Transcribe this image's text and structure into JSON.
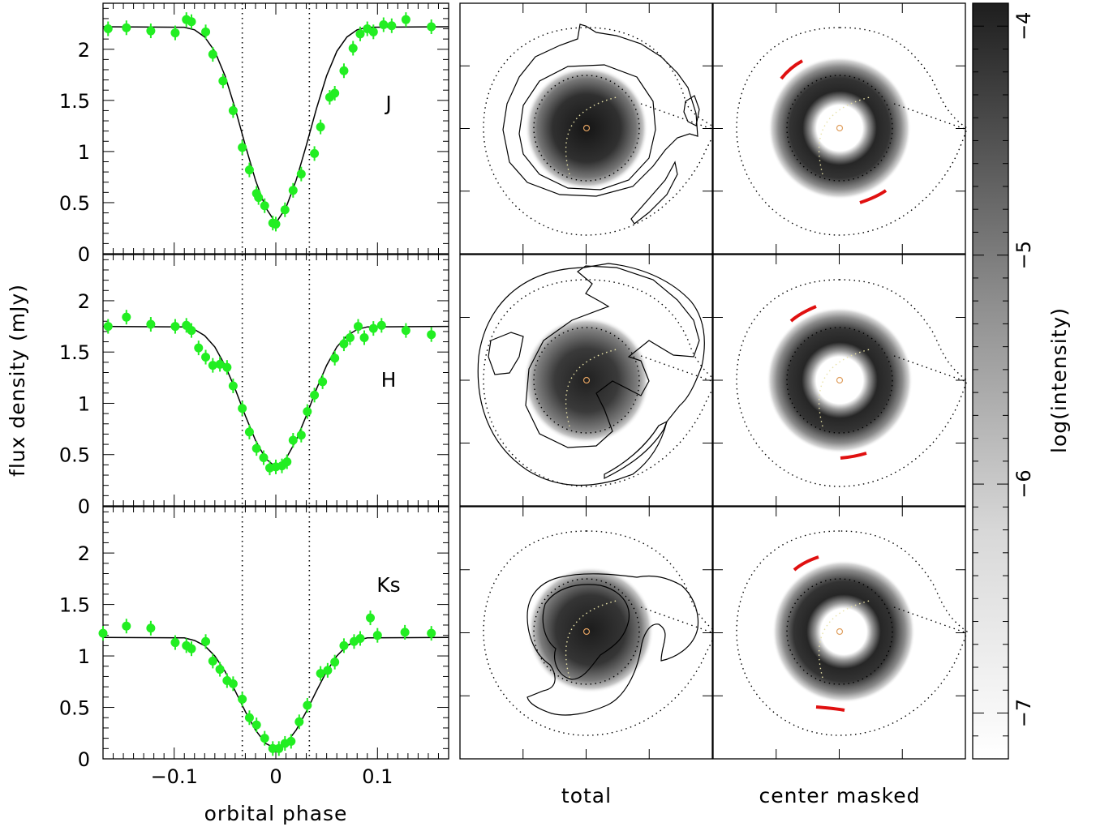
{
  "chart_data": [
    {
      "type": "scatter",
      "band": "J",
      "ylabel": "flux density (mJy)",
      "xlim": [
        -0.17,
        0.17
      ],
      "ylim": [
        0,
        2.45
      ],
      "xticks": [
        "−0.1",
        "0",
        "0.1"
      ],
      "yticks": [
        "0",
        "0.5",
        "1",
        "1.5",
        "2"
      ],
      "vlines_x": [
        -0.033,
        0.033
      ],
      "data_color": "#22ee22",
      "points": [
        [
          -0.165,
          2.2
        ],
        [
          -0.147,
          2.21
        ],
        [
          -0.123,
          2.18
        ],
        [
          -0.099,
          2.16
        ],
        [
          -0.088,
          2.29
        ],
        [
          -0.083,
          2.27
        ],
        [
          -0.069,
          2.17
        ],
        [
          -0.062,
          1.95
        ],
        [
          -0.052,
          1.69
        ],
        [
          -0.042,
          1.4
        ],
        [
          -0.033,
          1.04
        ],
        [
          -0.026,
          0.82
        ],
        [
          -0.019,
          0.59
        ],
        [
          -0.017,
          0.55
        ],
        [
          -0.011,
          0.47
        ],
        [
          -0.003,
          0.3
        ],
        [
          0.0,
          0.29
        ],
        [
          0.009,
          0.43
        ],
        [
          0.017,
          0.62
        ],
        [
          0.025,
          0.78
        ],
        [
          0.038,
          0.98
        ],
        [
          0.044,
          1.24
        ],
        [
          0.053,
          1.53
        ],
        [
          0.058,
          1.57
        ],
        [
          0.067,
          1.79
        ],
        [
          0.076,
          2.01
        ],
        [
          0.083,
          2.15
        ],
        [
          0.09,
          2.2
        ],
        [
          0.096,
          2.17
        ],
        [
          0.106,
          2.24
        ],
        [
          0.114,
          2.23
        ],
        [
          0.128,
          2.29
        ],
        [
          0.153,
          2.22
        ]
      ],
      "model": [
        [
          -0.17,
          2.22
        ],
        [
          -0.09,
          2.215
        ],
        [
          -0.08,
          2.19
        ],
        [
          -0.07,
          2.12
        ],
        [
          -0.06,
          1.98
        ],
        [
          -0.05,
          1.74
        ],
        [
          -0.04,
          1.42
        ],
        [
          -0.03,
          1.06
        ],
        [
          -0.02,
          0.72
        ],
        [
          -0.01,
          0.45
        ],
        [
          0.0,
          0.3
        ],
        [
          0.01,
          0.45
        ],
        [
          0.02,
          0.72
        ],
        [
          0.03,
          1.06
        ],
        [
          0.04,
          1.42
        ],
        [
          0.05,
          1.74
        ],
        [
          0.06,
          1.98
        ],
        [
          0.07,
          2.12
        ],
        [
          0.08,
          2.19
        ],
        [
          0.09,
          2.215
        ],
        [
          0.17,
          2.22
        ]
      ]
    },
    {
      "type": "scatter",
      "band": "H",
      "xlim": [
        -0.17,
        0.17
      ],
      "ylim": [
        0,
        2.45
      ],
      "yticks": [
        "0",
        "0.5",
        "1",
        "1.5",
        "2"
      ],
      "vlines_x": [
        -0.033,
        0.033
      ],
      "data_color": "#22ee22",
      "points": [
        [
          -0.165,
          1.75
        ],
        [
          -0.147,
          1.84
        ],
        [
          -0.123,
          1.77
        ],
        [
          -0.099,
          1.75
        ],
        [
          -0.088,
          1.76
        ],
        [
          -0.083,
          1.71
        ],
        [
          -0.076,
          1.54
        ],
        [
          -0.069,
          1.45
        ],
        [
          -0.062,
          1.37
        ],
        [
          -0.055,
          1.38
        ],
        [
          -0.048,
          1.35
        ],
        [
          -0.042,
          1.17
        ],
        [
          -0.033,
          0.95
        ],
        [
          -0.026,
          0.72
        ],
        [
          -0.019,
          0.56
        ],
        [
          -0.012,
          0.47
        ],
        [
          -0.006,
          0.37
        ],
        [
          0.0,
          0.38
        ],
        [
          0.006,
          0.39
        ],
        [
          0.011,
          0.43
        ],
        [
          0.017,
          0.64
        ],
        [
          0.025,
          0.69
        ],
        [
          0.031,
          0.92
        ],
        [
          0.038,
          1.08
        ],
        [
          0.046,
          1.21
        ],
        [
          0.058,
          1.44
        ],
        [
          0.067,
          1.58
        ],
        [
          0.073,
          1.64
        ],
        [
          0.081,
          1.75
        ],
        [
          0.087,
          1.64
        ],
        [
          0.096,
          1.73
        ],
        [
          0.104,
          1.76
        ],
        [
          0.128,
          1.71
        ],
        [
          0.153,
          1.67
        ]
      ],
      "model": [
        [
          -0.17,
          1.75
        ],
        [
          -0.09,
          1.745
        ],
        [
          -0.08,
          1.72
        ],
        [
          -0.07,
          1.66
        ],
        [
          -0.06,
          1.55
        ],
        [
          -0.05,
          1.37
        ],
        [
          -0.04,
          1.14
        ],
        [
          -0.03,
          0.88
        ],
        [
          -0.02,
          0.64
        ],
        [
          -0.01,
          0.46
        ],
        [
          0.0,
          0.38
        ],
        [
          0.01,
          0.46
        ],
        [
          0.02,
          0.64
        ],
        [
          0.03,
          0.88
        ],
        [
          0.04,
          1.14
        ],
        [
          0.05,
          1.37
        ],
        [
          0.06,
          1.55
        ],
        [
          0.07,
          1.66
        ],
        [
          0.08,
          1.72
        ],
        [
          0.09,
          1.745
        ],
        [
          0.17,
          1.75
        ]
      ]
    },
    {
      "type": "scatter",
      "band": "Ks",
      "xlabel": "orbital phase",
      "xlim": [
        -0.17,
        0.17
      ],
      "ylim": [
        0,
        2.45
      ],
      "xticks": [
        "−0.1",
        "0",
        "0.1"
      ],
      "yticks": [
        "0",
        "0.5",
        "1",
        "1.5",
        "2"
      ],
      "vlines_x": [
        -0.033,
        0.033
      ],
      "data_color": "#22ee22",
      "points": [
        [
          -0.17,
          1.22
        ],
        [
          -0.147,
          1.29
        ],
        [
          -0.123,
          1.27
        ],
        [
          -0.099,
          1.13
        ],
        [
          -0.088,
          1.1
        ],
        [
          -0.083,
          1.07
        ],
        [
          -0.069,
          1.14
        ],
        [
          -0.062,
          0.95
        ],
        [
          -0.055,
          0.87
        ],
        [
          -0.048,
          0.76
        ],
        [
          -0.042,
          0.73
        ],
        [
          -0.033,
          0.58
        ],
        [
          -0.026,
          0.4
        ],
        [
          -0.019,
          0.33
        ],
        [
          -0.011,
          0.2
        ],
        [
          -0.003,
          0.1
        ],
        [
          0.003,
          0.1
        ],
        [
          0.009,
          0.15
        ],
        [
          0.015,
          0.17
        ],
        [
          0.023,
          0.36
        ],
        [
          0.031,
          0.52
        ],
        [
          0.044,
          0.83
        ],
        [
          0.051,
          0.86
        ],
        [
          0.058,
          0.94
        ],
        [
          0.067,
          1.1
        ],
        [
          0.077,
          1.14
        ],
        [
          0.083,
          1.17
        ],
        [
          0.093,
          1.37
        ],
        [
          0.1,
          1.2
        ],
        [
          0.127,
          1.23
        ],
        [
          0.153,
          1.22
        ]
      ],
      "model": [
        [
          -0.17,
          1.18
        ],
        [
          -0.09,
          1.175
        ],
        [
          -0.08,
          1.15
        ],
        [
          -0.07,
          1.1
        ],
        [
          -0.06,
          1.0
        ],
        [
          -0.05,
          0.85
        ],
        [
          -0.04,
          0.66
        ],
        [
          -0.03,
          0.46
        ],
        [
          -0.02,
          0.28
        ],
        [
          -0.01,
          0.15
        ],
        [
          0.0,
          0.1
        ],
        [
          0.01,
          0.15
        ],
        [
          0.02,
          0.28
        ],
        [
          0.03,
          0.46
        ],
        [
          0.04,
          0.66
        ],
        [
          0.05,
          0.85
        ],
        [
          0.06,
          1.0
        ],
        [
          0.07,
          1.1
        ],
        [
          0.08,
          1.15
        ],
        [
          0.09,
          1.175
        ],
        [
          0.17,
          1.18
        ]
      ]
    },
    {
      "type": "heatmap",
      "columns": [
        "total",
        "center masked"
      ],
      "rows": [
        "J",
        "H",
        "Ks"
      ],
      "colorbar": {
        "label": "log(intensity)",
        "range": [
          -7.2,
          -3.9
        ],
        "ticks": [
          "−4",
          "−5",
          "−6",
          "−7"
        ]
      }
    }
  ]
}
